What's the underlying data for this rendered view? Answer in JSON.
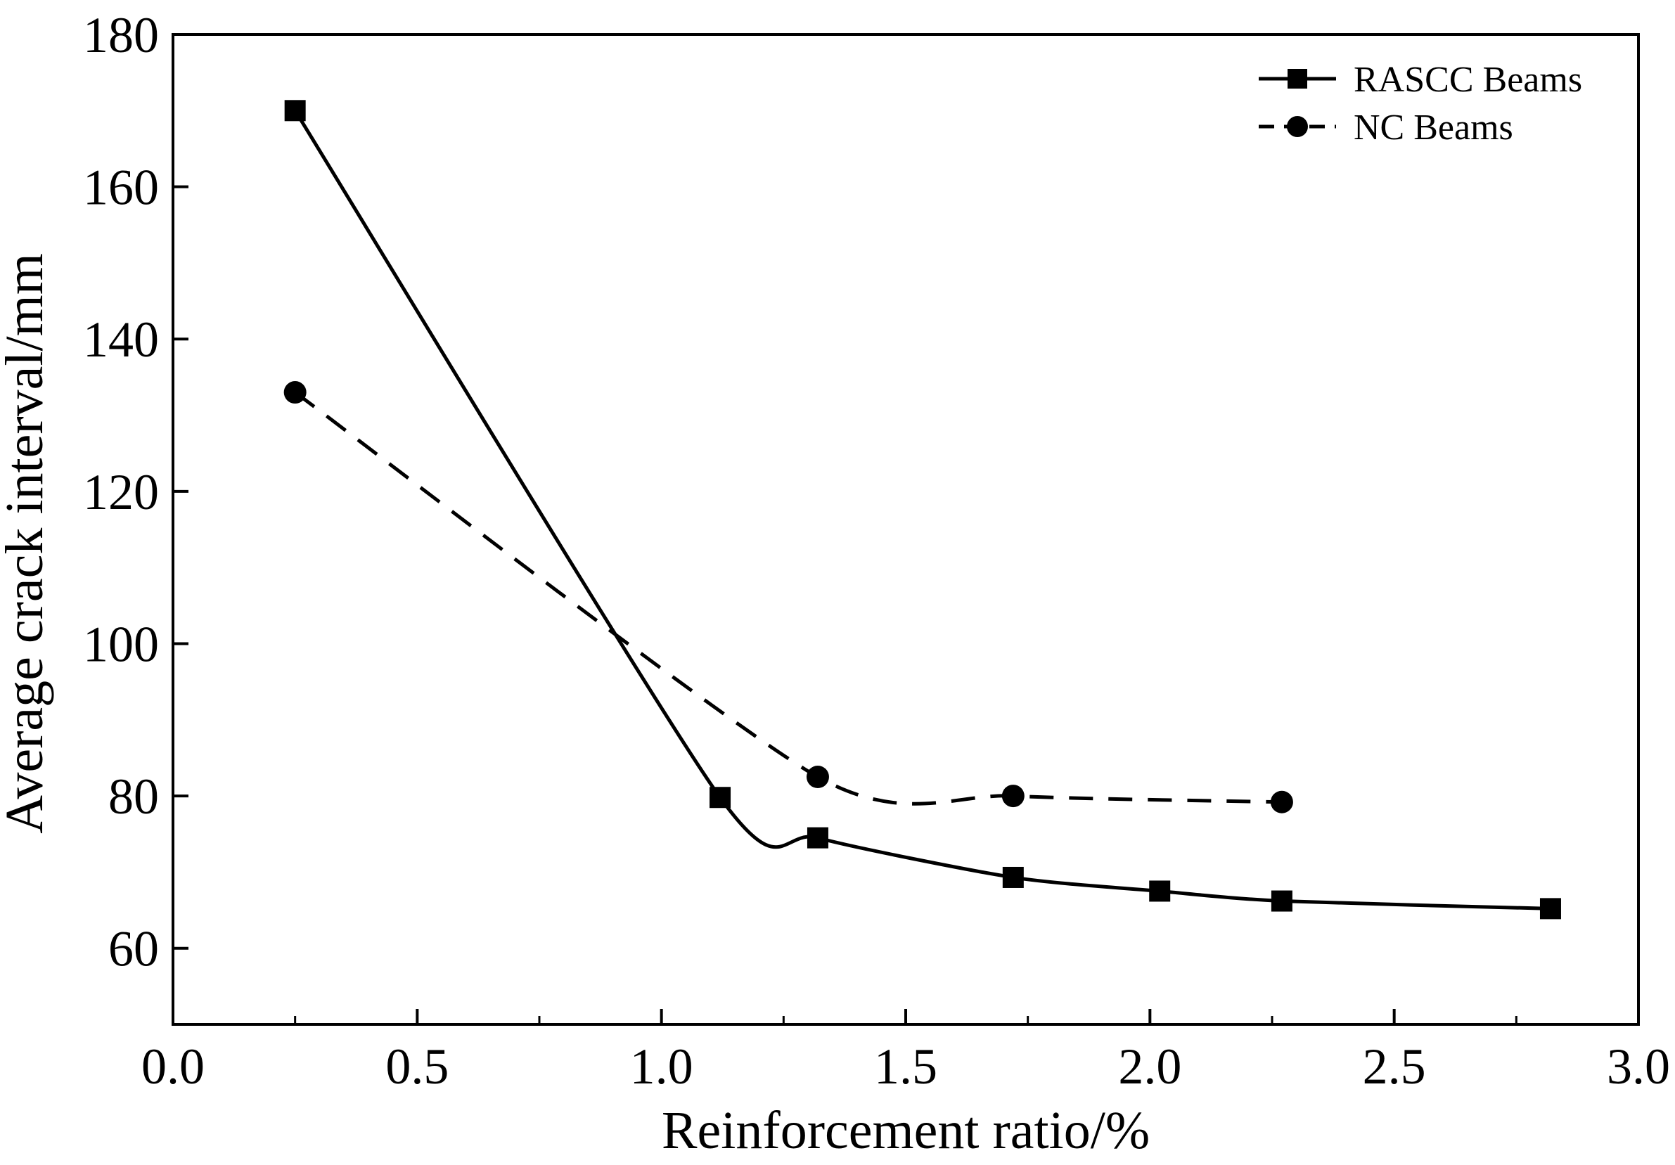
{
  "chart_data": {
    "type": "line",
    "title": "",
    "xlabel": "Reinforcement ratio/%",
    "ylabel": "Average crack interval/mm",
    "xlim": [
      0.0,
      3.0
    ],
    "ylim": [
      50,
      180
    ],
    "xticks": [
      0.0,
      0.5,
      1.0,
      1.5,
      2.0,
      2.5,
      3.0
    ],
    "xtick_labels": [
      "0.0",
      "0.5",
      "1.0",
      "1.5",
      "2.0",
      "2.5",
      "3.0"
    ],
    "yticks": [
      60,
      80,
      100,
      120,
      140,
      160,
      180
    ],
    "ytick_labels": [
      "60",
      "80",
      "100",
      "120",
      "140",
      "160",
      "180"
    ],
    "grid": false,
    "legend_position": "top-right",
    "series": [
      {
        "name": "RASCC Beams",
        "line_style": "solid",
        "marker": "square",
        "color": "#000000",
        "x": [
          0.25,
          1.12,
          1.32,
          1.72,
          2.02,
          2.27,
          2.82
        ],
        "y": [
          170,
          79.8,
          74.5,
          69.3,
          67.5,
          66.2,
          65.2
        ]
      },
      {
        "name": "NC Beams",
        "line_style": "dashed",
        "marker": "circle",
        "color": "#000000",
        "x": [
          0.25,
          1.32,
          1.72,
          2.27
        ],
        "y": [
          133,
          82.5,
          80,
          79.2
        ]
      }
    ]
  }
}
